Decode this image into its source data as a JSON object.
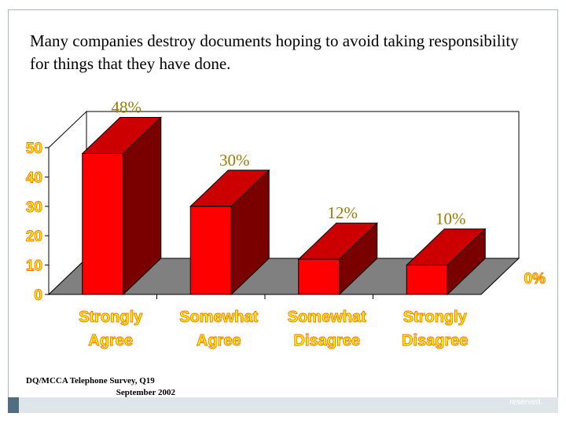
{
  "slide": {
    "title": "Many companies destroy documents hoping to avoid taking responsibility for things that they have done.",
    "source_line1": "DQ/MCCA Telephone Survey, Q19",
    "source_line2": "September 2002",
    "copyright": "©2003 DQ/MCCA LLC. All rights reserved."
  },
  "colors": {
    "bar_front": "#ff0000",
    "bar_top": "#cc0000",
    "bar_side": "#7a0000",
    "floor": "#808080",
    "tick_fill": "#ffff00",
    "tick_outline": "#ff6a00",
    "data_label": "#9a7a00"
  },
  "chart_data": {
    "type": "bar",
    "style": "3d",
    "categories": [
      [
        "Strongly",
        "Agree"
      ],
      [
        "Somewhat",
        "Agree"
      ],
      [
        "Somewhat",
        "Disagree"
      ],
      [
        "Strongly",
        "Disagree"
      ]
    ],
    "values": [
      48,
      30,
      12,
      10
    ],
    "data_labels": [
      "48%",
      "30%",
      "12%",
      "10%"
    ],
    "ylim": [
      0,
      50
    ],
    "yticks": [
      0,
      10,
      20,
      30,
      40,
      50
    ],
    "right_axis_label": "0%",
    "title": "",
    "xlabel": "",
    "ylabel": "",
    "legend": "none"
  }
}
